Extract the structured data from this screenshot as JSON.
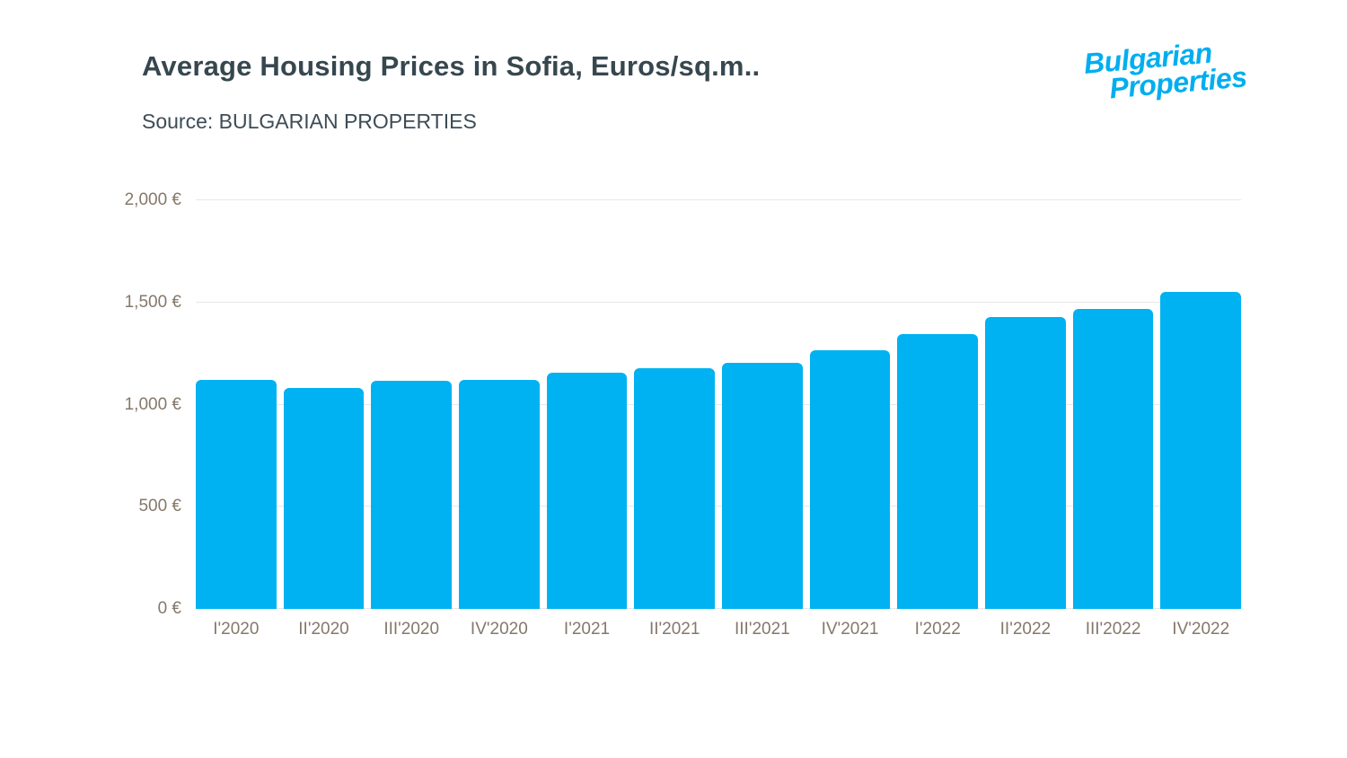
{
  "header": {
    "title": "Average Housing Prices in Sofia, Euros/sq.m..",
    "source": "Source: BULGARIAN PROPERTIES",
    "logo_line1": "Bulgarian",
    "logo_line2": "Properties"
  },
  "colors": {
    "bar": "#00b2f2",
    "grid": "#e7e7e7",
    "title": "#37474f",
    "axis_label": "#85786a",
    "logo": "#00aeef"
  },
  "chart_data": {
    "type": "bar",
    "title": "Average Housing Prices in Sofia, Euros/sq.m..",
    "source": "Source: BULGARIAN PROPERTIES",
    "categories": [
      "I'2020",
      "II'2020",
      "III'2020",
      "IV'2020",
      "I'2021",
      "II'2021",
      "III'2021",
      "IV'2021",
      "I'2022",
      "II'2022",
      "III'2022",
      "IV'2022"
    ],
    "values": [
      1120,
      1080,
      1115,
      1120,
      1155,
      1180,
      1205,
      1265,
      1345,
      1430,
      1470,
      1550
    ],
    "xlabel": "",
    "ylabel": "",
    "ylim": [
      0,
      2000
    ],
    "yticks": [
      0,
      500,
      1000,
      1500,
      2000
    ],
    "ytick_labels": [
      "0 €",
      "500 €",
      "1,000 €",
      "1,500 €",
      "2,000 €"
    ],
    "grid": true,
    "legend": false,
    "bar_color": "#00b2f2"
  }
}
